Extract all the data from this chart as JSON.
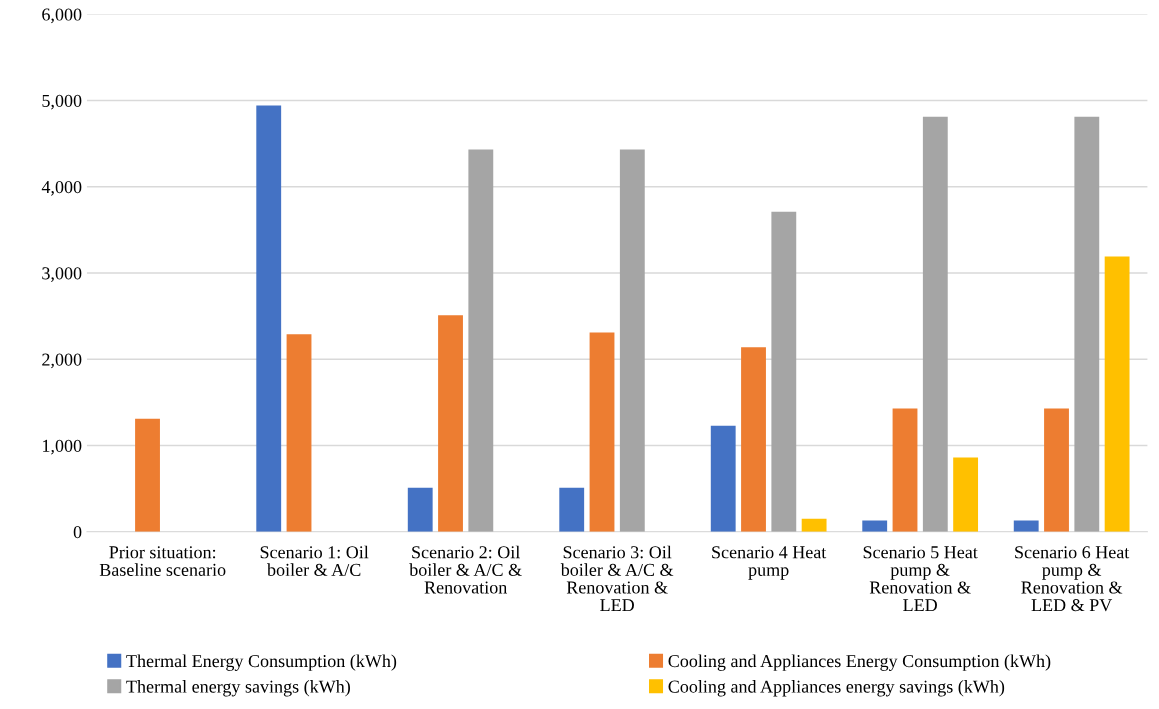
{
  "chart_data": {
    "type": "bar",
    "categories": [
      "Prior situation: Baseline scenario",
      "Scenario 1: Oil boiler & A/C",
      "Scenario 2: Oil boiler & A/C & Renovation",
      "Scenario 3: Oil boiler & A/C & Renovation & LED",
      "Scenario 4 Heat pump",
      "Scenario 5 Heat pump & Renovation & LED",
      "Scenario 6 Heat pump & Renovation & LED & PV"
    ],
    "series": [
      {
        "name": "Thermal Energy Consumption (kWh)",
        "color": "#4472c4",
        "values": [
          0,
          4940,
          510,
          510,
          1230,
          130,
          130
        ]
      },
      {
        "name": "Cooling and Appliances Energy Consumption (kWh)",
        "color": "#ed7d31",
        "values": [
          1310,
          2290,
          2510,
          2310,
          2140,
          1430,
          1430
        ]
      },
      {
        "name": "Thermal energy savings (kWh)",
        "color": "#a5a5a5",
        "values": [
          0,
          0,
          4430,
          4430,
          3710,
          4810,
          4810
        ]
      },
      {
        "name": "Cooling and Appliances energy savings (kWh)",
        "color": "#ffc000",
        "values": [
          0,
          0,
          0,
          0,
          150,
          860,
          3190
        ]
      }
    ],
    "ylim": [
      0,
      6000
    ],
    "yticks": [
      {
        "value": 0,
        "label": "0"
      },
      {
        "value": 1000,
        "label": "1,000"
      },
      {
        "value": 2000,
        "label": "2,000"
      },
      {
        "value": 3000,
        "label": "3,000"
      },
      {
        "value": 4000,
        "label": "4,000"
      },
      {
        "value": 5000,
        "label": "5,000"
      },
      {
        "value": 6000,
        "label": "6,000"
      }
    ],
    "grid": "y",
    "legend": "bottom"
  }
}
